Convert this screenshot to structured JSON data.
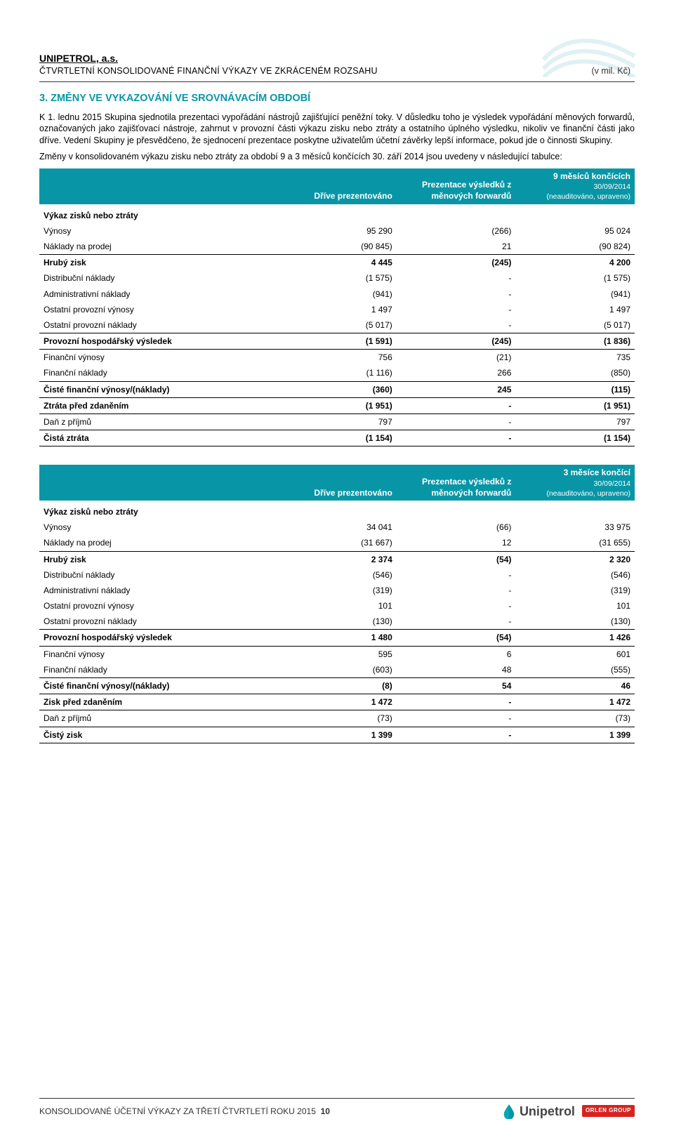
{
  "header": {
    "company": "UNIPETROL, a.s.",
    "subtitle": "ČTVRTLETNÍ KONSOLIDOVANÉ FINANČNÍ VÝKAZY VE ZKRÁCENÉM ROZSAHU",
    "unit": "(v mil. Kč)"
  },
  "section": {
    "title": "3.   ZMĚNY VE VYKAZOVÁNÍ VE SROVNÁVACÍM OBDOBÍ",
    "p1": "K 1. lednu 2015 Skupina sjednotila prezentaci vypořádání nástrojů zajišťující peněžní toky. V důsledku toho je výsledek vypořádání měnových forwardů, označovaných jako zajišťovací nástroje, zahrnut v provozní části výkazu zisku nebo ztráty a ostatního úplného výsledku, nikoliv ve finanční části jako dříve. Vedení Skupiny je přesvědčeno, že sjednocení prezentace poskytne uživatelům účetní závěrky lepší informace, pokud jde o činnosti Skupiny.",
    "p2": "Změny v konsolidovaném výkazu zisku nebo ztráty za období 9 a 3 měsíců končících 30. září 2014  jsou uvedeny v následující tabulce:"
  },
  "colors": {
    "teal": "#0896a6",
    "red": "#d8221f",
    "wm": "#0a93a2"
  },
  "columns": {
    "c1": "Dříve prezentováno",
    "c2": "Prezentace výsledků z měnových forwardů",
    "c3_9m_a": "9 měsíců končících",
    "c3_9m_b": "30/09/2014",
    "c3_3m_a": "3 měsíce končící",
    "c3_3m_b": "30/09/2014",
    "c3_note": "(neauditováno, upraveno)"
  },
  "subheading": "Výkaz zisků nebo ztráty",
  "t9": [
    {
      "l": "Výnosy",
      "a": "95 290",
      "b": "(266)",
      "c": "95 024"
    },
    {
      "l": "Náklady na prodej",
      "a": "(90 845)",
      "b": "21",
      "c": "(90 824)"
    },
    {
      "l": "Hrubý zisk",
      "a": "4 445",
      "b": "(245)",
      "c": "4 200",
      "bold": true,
      "line": true
    },
    {
      "l": "Distribuční náklady",
      "a": "(1 575)",
      "b": "-",
      "c": "(1 575)"
    },
    {
      "l": "Administrativní náklady",
      "a": "(941)",
      "b": "-",
      "c": "(941)"
    },
    {
      "l": "Ostatní provozní výnosy",
      "a": "1 497",
      "b": "-",
      "c": "1 497"
    },
    {
      "l": "Ostatní provozní náklady",
      "a": "(5 017)",
      "b": "-",
      "c": "(5 017)"
    },
    {
      "l": "Provozní hospodářský výsledek",
      "a": "(1 591)",
      "b": "(245)",
      "c": "(1 836)",
      "bold": true,
      "line": true,
      "linebot": true
    },
    {
      "l": "Finanční výnosy",
      "a": "756",
      "b": "(21)",
      "c": "735"
    },
    {
      "l": "Finanční náklady",
      "a": "(1 116)",
      "b": "266",
      "c": "(850)"
    },
    {
      "l": "Čisté finanční výnosy/(náklady)",
      "a": "(360)",
      "b": "245",
      "c": "(115)",
      "bold": true,
      "line": true
    },
    {
      "l": "Ztráta před zdaněním",
      "a": "(1 951)",
      "b": "-",
      "c": "(1 951)",
      "bold": true,
      "line": true,
      "linebot": true
    },
    {
      "l": "Daň z příjmů",
      "a": "797",
      "b": "-",
      "c": "797"
    },
    {
      "l": "Čistá ztráta",
      "a": "(1 154)",
      "b": "-",
      "c": "(1 154)",
      "bold": true,
      "line": true,
      "linebot": true
    }
  ],
  "t3": [
    {
      "l": "Výnosy",
      "a": "34 041",
      "b": "(66)",
      "c": "33 975"
    },
    {
      "l": "Náklady na prodej",
      "a": "(31 667)",
      "b": "12",
      "c": "(31 655)"
    },
    {
      "l": "Hrubý zisk",
      "a": "2 374",
      "b": "(54)",
      "c": "2 320",
      "bold": true,
      "line": true
    },
    {
      "l": "Distribuční náklady",
      "a": "(546)",
      "b": "-",
      "c": "(546)"
    },
    {
      "l": "Administrativní náklady",
      "a": "(319)",
      "b": "-",
      "c": "(319)"
    },
    {
      "l": "Ostatní provozní výnosy",
      "a": "101",
      "b": "-",
      "c": "101"
    },
    {
      "l": "Ostatní provozní náklady",
      "a": "(130)",
      "b": "-",
      "c": "(130)"
    },
    {
      "l": "Provozní hospodářský výsledek",
      "a": "1 480",
      "b": "(54)",
      "c": "1 426",
      "bold": true,
      "line": true,
      "linebot": true
    },
    {
      "l": "Finanční výnosy",
      "a": "595",
      "b": "6",
      "c": "601"
    },
    {
      "l": "Finanční náklady",
      "a": "(603)",
      "b": "48",
      "c": "(555)"
    },
    {
      "l": "Čisté finanční výnosy/(náklady)",
      "a": "(8)",
      "b": "54",
      "c": "46",
      "bold": true,
      "line": true
    },
    {
      "l": "Zisk před zdaněním",
      "a": "1 472",
      "b": "-",
      "c": "1 472",
      "bold": true,
      "line": true,
      "linebot": true
    },
    {
      "l": "Daň z příjmů",
      "a": "(73)",
      "b": "-",
      "c": "(73)"
    },
    {
      "l": "Čistý zisk",
      "a": "1 399",
      "b": "-",
      "c": "1 399",
      "bold": true,
      "line": true,
      "linebot": true
    }
  ],
  "footer": {
    "text": "KONSOLIDOVANÉ ÚČETNÍ VÝKAZY ZA TŘETÍ ČTVRTLETÍ ROKU 2015",
    "page": "10",
    "brand": "Unipetrol",
    "orlen": "ORLEN GROUP"
  }
}
